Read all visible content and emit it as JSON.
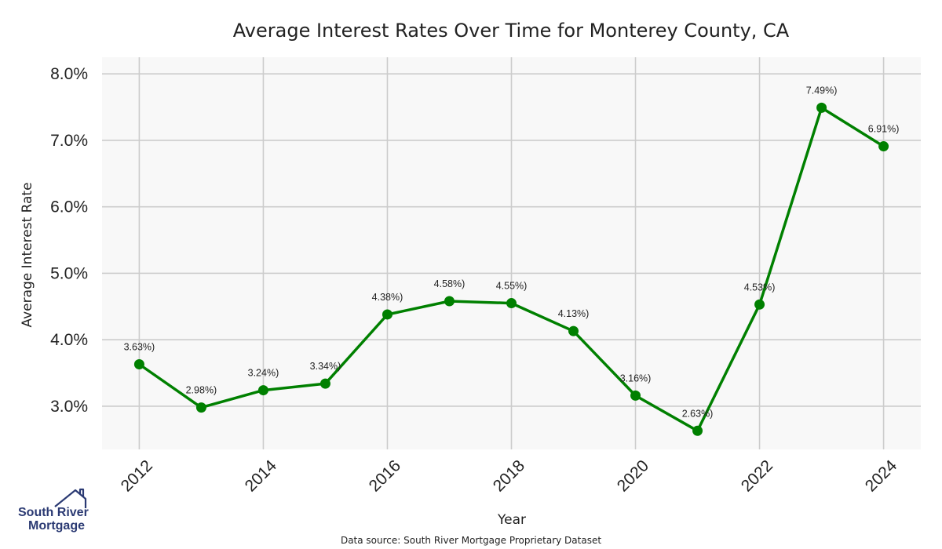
{
  "chart_data": {
    "type": "line",
    "title": "Average Interest Rates Over Time for Monterey County, CA",
    "xlabel": "Year",
    "ylabel": "Average Interest Rate",
    "x": [
      2012,
      2013,
      2014,
      2015,
      2016,
      2017,
      2018,
      2019,
      2020,
      2021,
      2022,
      2023,
      2024
    ],
    "series": [
      {
        "values": [
          3.63,
          2.98,
          3.24,
          3.34,
          4.38,
          4.58,
          4.55,
          4.13,
          3.16,
          2.63,
          4.53,
          7.49,
          6.91
        ],
        "point_labels": [
          "3.63%)",
          "2.98%)",
          "3.24%)",
          "3.34%)",
          "4.38%)",
          "4.58%)",
          "4.55%)",
          "4.13%)",
          "3.16%)",
          "2.63%)",
          "4.53%)",
          "7.49%)",
          "6.91%)"
        ]
      }
    ],
    "x_ticks": [
      "2012",
      "2014",
      "2016",
      "2018",
      "2020",
      "2022",
      "2024"
    ],
    "x_tick_values": [
      2012,
      2014,
      2016,
      2018,
      2020,
      2022,
      2024
    ],
    "y_ticks": [
      "3.0%",
      "4.0%",
      "5.0%",
      "6.0%",
      "7.0%",
      "8.0%"
    ],
    "y_tick_values": [
      3,
      4,
      5,
      6,
      7,
      8
    ],
    "xlim": [
      2011.4,
      2024.6
    ],
    "ylim": [
      2.35,
      8.25
    ],
    "grid": true,
    "legend": "none",
    "colors": {
      "line": "#008000",
      "plot_background": "#f8f8f8",
      "grid": "#cccccc"
    }
  },
  "source_note": "Data source: South River Mortgage Proprietary Dataset",
  "logo": {
    "line1": "South River",
    "line2": "Mortgage",
    "icon": "house-icon",
    "color": "#2b3a73"
  }
}
